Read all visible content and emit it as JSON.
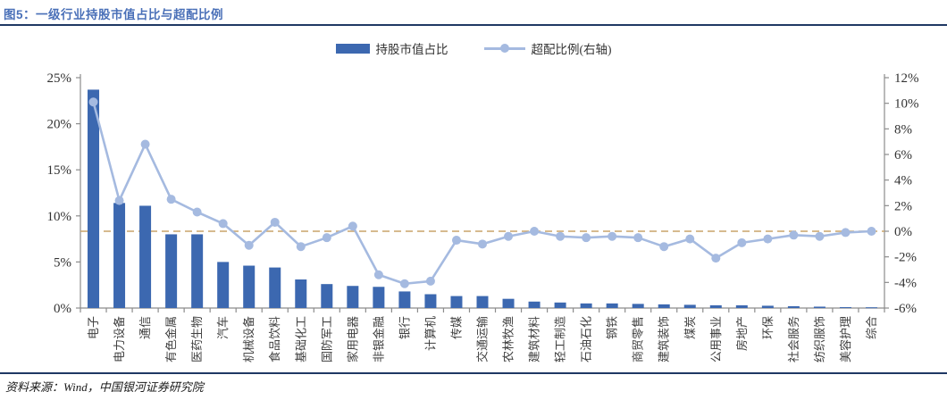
{
  "header": {
    "title": "图5：一级行业持股市值占比与超配比例"
  },
  "legend": {
    "bar_label": "持股市值占比",
    "line_label": "超配比例(右轴)"
  },
  "footer": {
    "source": "资料来源：Wind，中国银河证券研究院"
  },
  "colors": {
    "bar": "#3C68B0",
    "line": "#A5BAE0",
    "dashed_reference": "#C9A36A",
    "title": "#4A70B8",
    "rule": "#1F3864",
    "axis": "#8C8C8C",
    "tick_text": "#333333",
    "category_text": "#404040"
  },
  "chart_data": {
    "type": "bar",
    "title": "图5：一级行业持股市值占比与超配比例",
    "categories": [
      "电子",
      "电力设备",
      "通信",
      "有色金属",
      "医药生物",
      "汽车",
      "机械设备",
      "食品饮料",
      "基础化工",
      "国防军工",
      "家用电器",
      "非银金融",
      "银行",
      "计算机",
      "传媒",
      "交通运输",
      "农林牧渔",
      "建筑材料",
      "轻工制造",
      "石油石化",
      "钢铁",
      "商贸零售",
      "建筑装饰",
      "煤炭",
      "公用事业",
      "房地产",
      "环保",
      "社会服务",
      "纺织服饰",
      "美容护理",
      "综合"
    ],
    "series": [
      {
        "name": "持股市值占比",
        "type": "bar",
        "axis": "left",
        "unit": "%",
        "values": [
          23.7,
          11.4,
          11.1,
          8.0,
          8.0,
          5.0,
          4.6,
          4.4,
          3.1,
          2.6,
          2.4,
          2.3,
          1.8,
          1.5,
          1.3,
          1.3,
          1.0,
          0.7,
          0.6,
          0.5,
          0.5,
          0.45,
          0.4,
          0.35,
          0.3,
          0.3,
          0.25,
          0.2,
          0.15,
          0.1,
          0.08
        ]
      },
      {
        "name": "超配比例(右轴)",
        "type": "line",
        "axis": "right",
        "unit": "%",
        "values": [
          10.1,
          2.4,
          6.8,
          2.5,
          1.5,
          0.6,
          -1.1,
          0.7,
          -1.2,
          -0.5,
          0.4,
          -3.4,
          -4.1,
          -3.9,
          -0.7,
          -1.0,
          -0.4,
          0.0,
          -0.4,
          -0.5,
          -0.4,
          -0.5,
          -1.2,
          -0.6,
          -2.1,
          -0.9,
          -0.6,
          -0.3,
          -0.4,
          -0.1,
          0.0
        ]
      }
    ],
    "left_axis": {
      "min": 0,
      "max": 25,
      "step": 5,
      "tick_labels": [
        "0%",
        "5%",
        "10%",
        "15%",
        "20%",
        "25%"
      ]
    },
    "right_axis": {
      "min": -6,
      "max": 12,
      "step": 2,
      "tick_labels": [
        "-6%",
        "-4%",
        "-2%",
        "0%",
        "2%",
        "4%",
        "6%",
        "8%",
        "10%",
        "12%"
      ]
    },
    "reference_line": {
      "axis": "right",
      "value": 0,
      "style": "dashed"
    },
    "legend_position": "top-center",
    "grid": false,
    "x_label_rotation": -90
  }
}
